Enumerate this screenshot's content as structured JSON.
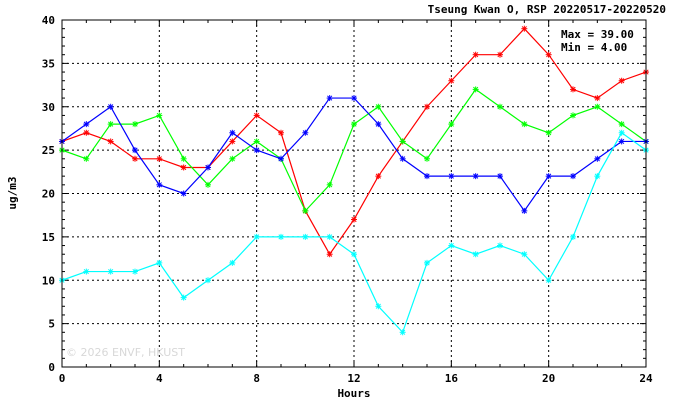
{
  "chart_data": {
    "type": "line",
    "title": "Tseung Kwan O, RSP 20220517-20220520",
    "xlabel": "Hours",
    "ylabel": "ug/m3",
    "xlim": [
      0,
      24
    ],
    "ylim": [
      0,
      40
    ],
    "xticks": [
      "0",
      "4",
      "8",
      "12",
      "16",
      "20",
      "24"
    ],
    "yticks": [
      "0",
      "5",
      "10",
      "15",
      "20",
      "25",
      "30",
      "35",
      "40"
    ],
    "grid": true,
    "x": [
      0,
      1,
      2,
      3,
      4,
      5,
      6,
      7,
      8,
      9,
      10,
      11,
      12,
      13,
      14,
      15,
      16,
      17,
      18,
      19,
      20,
      21,
      22,
      23,
      24
    ],
    "series": [
      {
        "color": "#ff0000",
        "values": [
          26,
          27,
          26,
          24,
          24,
          23,
          23,
          26,
          29,
          27,
          18,
          13,
          17,
          22,
          26,
          30,
          33,
          36,
          36,
          39,
          36,
          32,
          31,
          33,
          34
        ]
      },
      {
        "color": "#00ff00",
        "values": [
          25,
          24,
          28,
          28,
          29,
          24,
          21,
          24,
          26,
          24,
          18,
          21,
          28,
          30,
          26,
          24,
          28,
          32,
          30,
          28,
          27,
          29,
          30,
          28,
          26
        ]
      },
      {
        "color": "#0000ff",
        "values": [
          26,
          28,
          30,
          25,
          21,
          20,
          23,
          27,
          25,
          24,
          27,
          31,
          31,
          28,
          24,
          22,
          22,
          22,
          22,
          18,
          22,
          22,
          24,
          26,
          26
        ]
      },
      {
        "color": "#00ffff",
        "values": [
          10,
          11,
          11,
          11,
          12,
          8,
          10,
          12,
          15,
          15,
          15,
          15,
          13,
          7,
          4,
          12,
          14,
          13,
          14,
          13,
          10,
          15,
          22,
          27,
          25
        ]
      }
    ],
    "stats": {
      "max_label": "Max = 39.00",
      "min_label": "Min =  4.00"
    },
    "watermark": "© 2026  ENVF, HKUST"
  }
}
